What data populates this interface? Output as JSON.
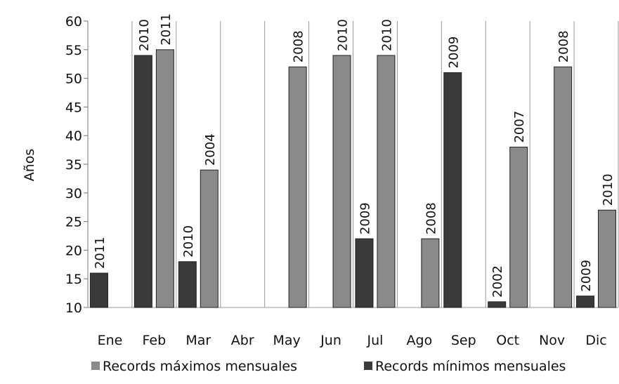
{
  "chart_data": {
    "type": "bar",
    "ylabel": "Años",
    "xlabel": "",
    "ylim": [
      10,
      60
    ],
    "yticks": [
      10,
      15,
      20,
      25,
      30,
      35,
      40,
      45,
      50,
      55,
      60
    ],
    "grid": "vertical separators between months",
    "legend_position": "bottom",
    "categories": [
      "Ene",
      "Feb",
      "Mar",
      "Abr",
      "May",
      "Jun",
      "Jul",
      "Ago",
      "Sep",
      "Oct",
      "Nov",
      "Dic"
    ],
    "series": [
      {
        "name": "Records máximos mensuales",
        "color": "#8a8a8a",
        "values": [
          null,
          55,
          34,
          null,
          52,
          54,
          54,
          22,
          null,
          38,
          52,
          27
        ],
        "labels": [
          "",
          "2011",
          "2004",
          "",
          "2008",
          "2010",
          "2010",
          "2008",
          "",
          "2007",
          "2008",
          "2010"
        ]
      },
      {
        "name": "Records mínimos mensuales",
        "color": "#3a3a3a",
        "values": [
          16,
          54,
          18,
          null,
          null,
          null,
          22,
          null,
          51,
          11,
          null,
          12
        ],
        "labels": [
          "2011",
          "2010",
          "2010",
          "",
          "",
          "",
          "2009",
          "",
          "2009",
          "2002",
          "",
          "2009"
        ]
      }
    ]
  }
}
